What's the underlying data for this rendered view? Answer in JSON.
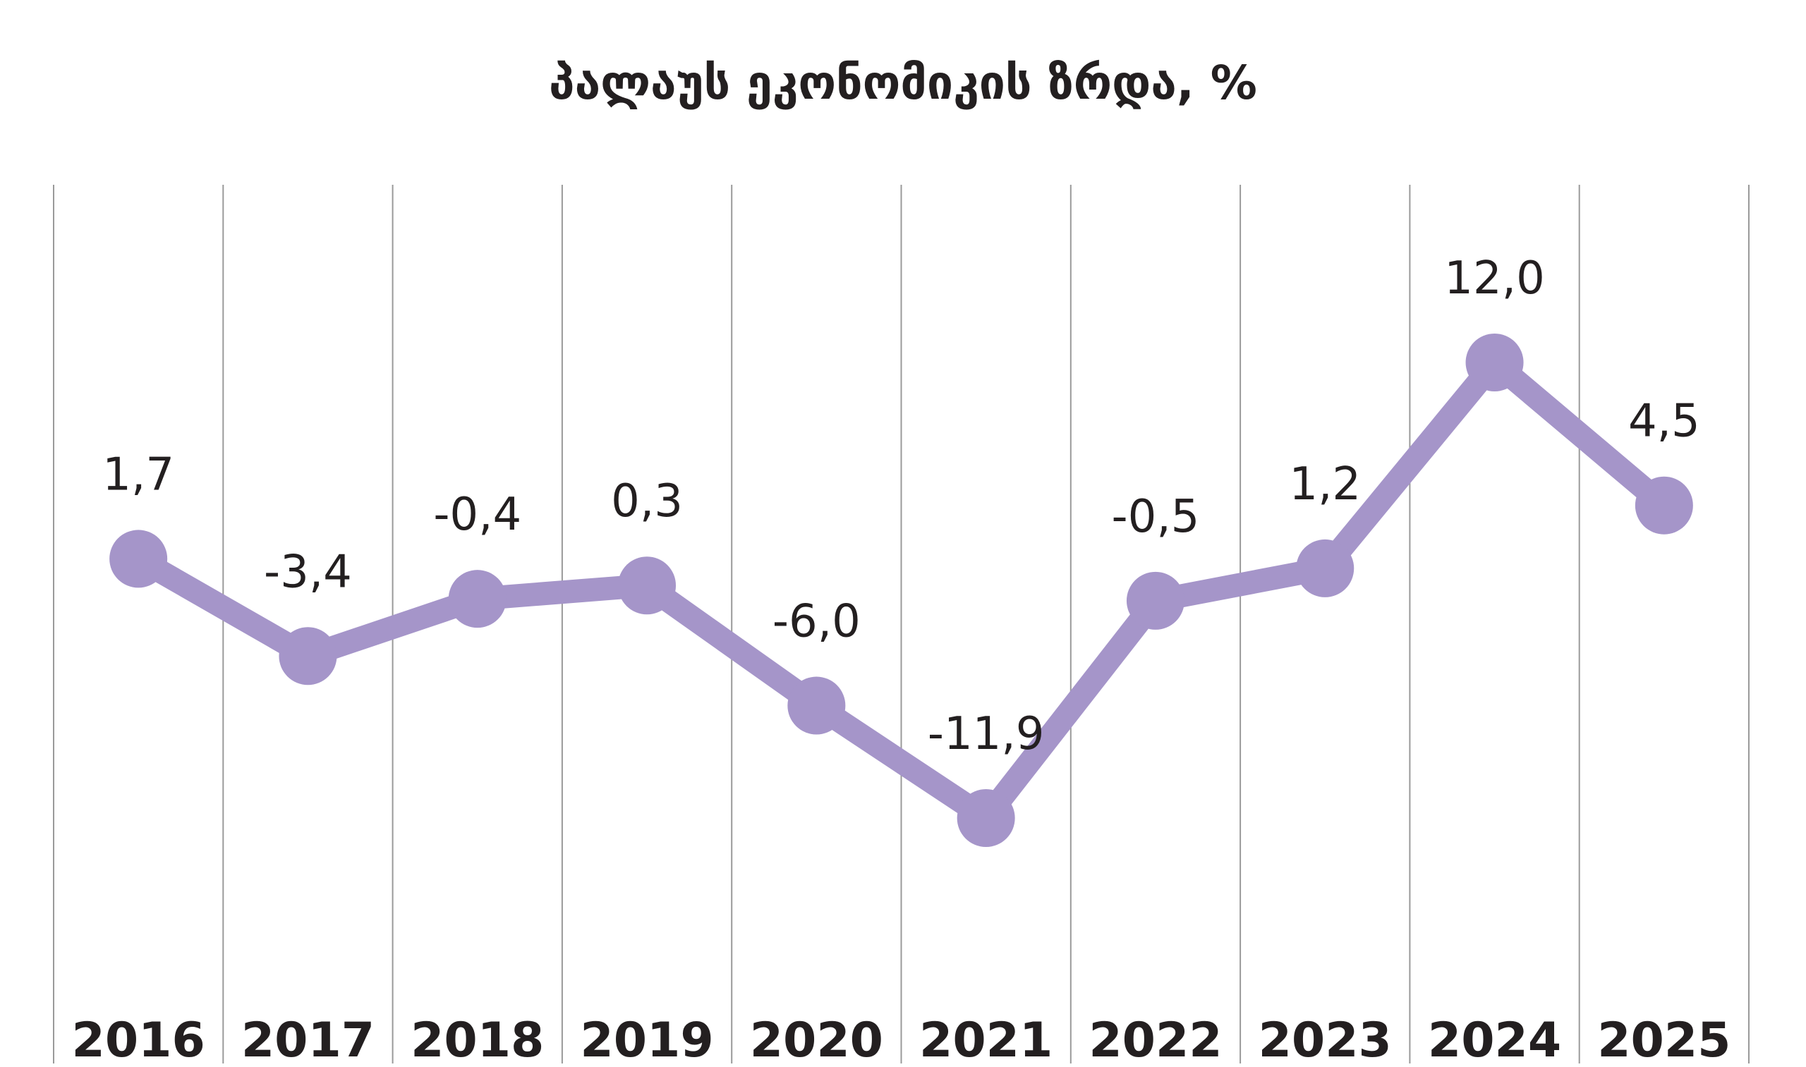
{
  "chart_data": {
    "type": "line",
    "title": "პალაუს ეკონომიკის ზრდა, %",
    "xlabel": "",
    "ylabel": "",
    "categories": [
      "2016",
      "2017",
      "2018",
      "2019",
      "2020",
      "2021",
      "2022",
      "2023",
      "2024",
      "2025"
    ],
    "series": [
      {
        "name": "ეკონომიკის ზრდა",
        "values": [
          1.7,
          -3.4,
          -0.4,
          0.3,
          -6.0,
          -11.9,
          -0.5,
          1.2,
          12.0,
          4.5
        ]
      }
    ],
    "data_labels": [
      "1,7",
      "-3,4",
      "-0,4",
      "0,3",
      "-6,0",
      "-11,9",
      "-0,5",
      "1,2",
      "12,0",
      "4,5"
    ],
    "ylim": [
      -11.9,
      12.0
    ],
    "grid": "vertical",
    "color": "#a595c9"
  }
}
